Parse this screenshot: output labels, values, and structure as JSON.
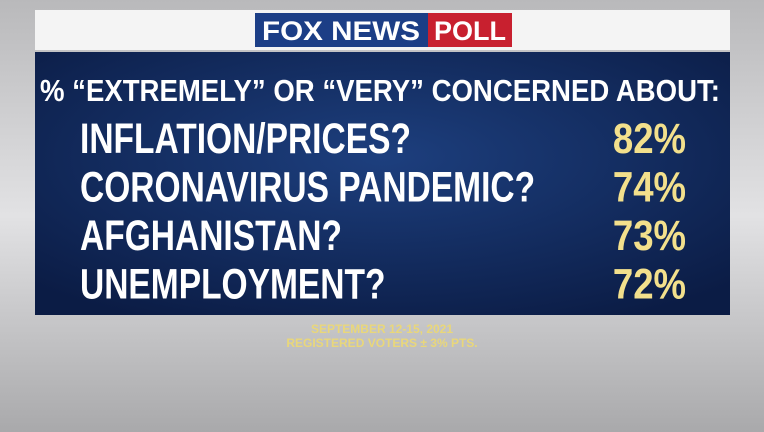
{
  "chart_data": {
    "type": "table",
    "brand": "FOX NEWS",
    "brand_tag": "POLL",
    "title": "% “EXTREMELY” OR “VERY” CONCERNED ABOUT:",
    "categories": [
      "INFLATION/PRICES?",
      "CORONAVIRUS PANDEMIC?",
      "AFGHANISTAN?",
      "UNEMPLOYMENT?"
    ],
    "values": [
      82,
      74,
      73,
      72
    ],
    "value_labels": [
      "82%",
      "74%",
      "73%",
      "72%"
    ],
    "notes": [
      "SEPTEMBER 12-15, 2021",
      "REGISTERED VOTERS ± 3% PTS."
    ]
  }
}
